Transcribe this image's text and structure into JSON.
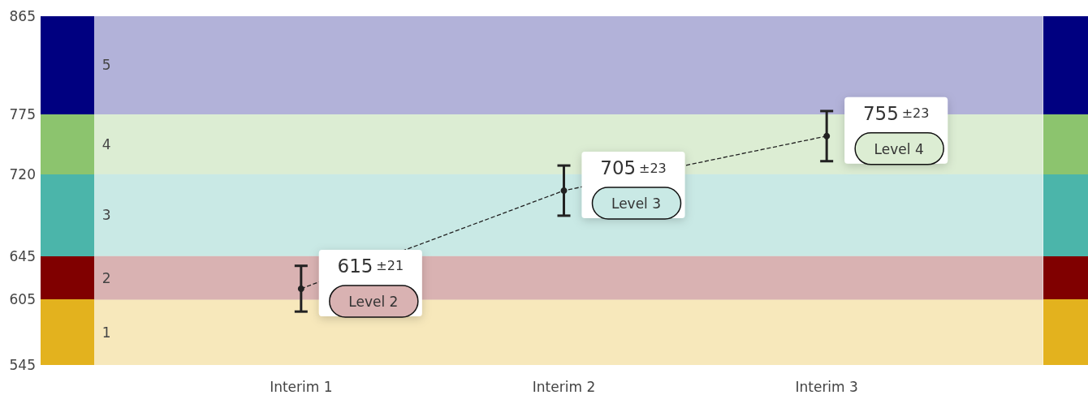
{
  "chart_data": {
    "type": "line",
    "categories": [
      "Interim 1",
      "Interim 2",
      "Interim 3"
    ],
    "series": [
      {
        "color": "#222222",
        "values": [
          615,
          705,
          755
        ],
        "errors": [
          21,
          23,
          23
        ],
        "value_labels": [
          "615 ±21",
          "705 ±23",
          "755 ±23"
        ]
      }
    ],
    "ylim": [
      545,
      865
    ],
    "yticks": [
      545,
      605,
      645,
      720,
      775,
      865
    ],
    "bands": [
      {
        "axis": "y",
        "from": 545,
        "to": 605,
        "label": "1",
        "color": "#e3b21e"
      },
      {
        "axis": "y",
        "from": 605,
        "to": 645,
        "label": "2",
        "color": "#800000"
      },
      {
        "axis": "y",
        "from": 645,
        "to": 720,
        "label": "3",
        "color": "#4bb5aa"
      },
      {
        "axis": "y",
        "from": 720,
        "to": 775,
        "label": "4",
        "color": "#8cc46e"
      },
      {
        "axis": "y",
        "from": 775,
        "to": 865,
        "label": "5",
        "color": "#000080"
      }
    ],
    "annotations": [
      "Level 2",
      "Level 3",
      "Level 4"
    ],
    "marker": "circle",
    "line_style": "dashed",
    "grid": false
  }
}
